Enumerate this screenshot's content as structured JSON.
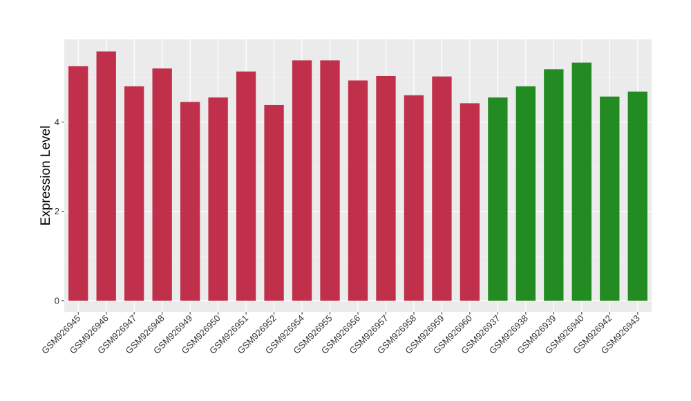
{
  "chart_data": {
    "type": "bar",
    "xlabel": "",
    "ylabel": "Expression Level",
    "ylim": [
      -0.25,
      5.85
    ],
    "yticks": [
      0,
      2,
      4
    ],
    "grid": true,
    "panel_background": "#ebebeb",
    "categories": [
      "GSM926945",
      "GSM926946",
      "GSM926947",
      "GSM926948",
      "GSM926949",
      "GSM926950",
      "GSM926951",
      "GSM926952",
      "GSM926954",
      "GSM926955",
      "GSM926956",
      "GSM926957",
      "GSM926958",
      "GSM926959",
      "GSM926960",
      "GSM926937",
      "GSM926938",
      "GSM926939",
      "GSM926940",
      "GSM926942",
      "GSM926943"
    ],
    "values": [
      5.25,
      5.58,
      4.8,
      5.2,
      4.45,
      4.55,
      5.13,
      4.38,
      5.38,
      5.38,
      4.93,
      5.03,
      4.6,
      5.02,
      4.42,
      4.55,
      4.8,
      5.18,
      5.33,
      4.57,
      4.68
    ],
    "groups": [
      "red",
      "red",
      "red",
      "red",
      "red",
      "red",
      "red",
      "red",
      "red",
      "red",
      "red",
      "red",
      "red",
      "red",
      "red",
      "green",
      "green",
      "green",
      "green",
      "green",
      "green"
    ],
    "colors": {
      "red": "#c0304a",
      "green": "#228b22"
    }
  }
}
